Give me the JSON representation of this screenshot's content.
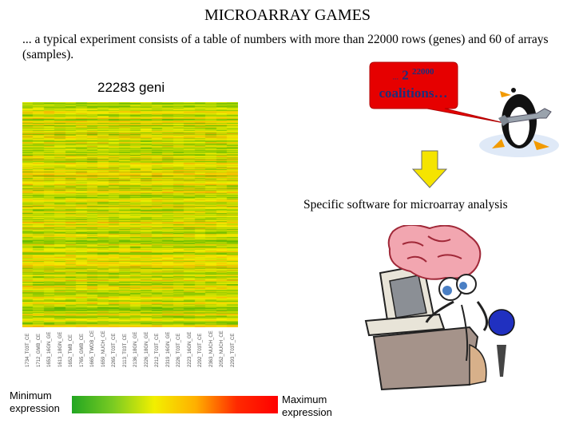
{
  "title": "MICROARRAY GAMES",
  "intro": "... a typical experiment consists of a table of numbers with more than 22000 rows (genes) and 60 of arrays (samples).",
  "heatmap": {
    "label": "22283 geni",
    "sample_labels": [
      "1734_T03T_CE",
      "1712_GMB_CE",
      "1653_16GN_GE",
      "1613_18GN_GE",
      "1652_TMB_CE",
      "1765_GMB_CE",
      "1665_TWDB_CE",
      "1659_NUCH_CE",
      "2265_T03T_CE",
      "2113_T03T_CE",
      "2136_18GN_GE",
      "2226_18GN_GE",
      "2212_T03T_CE",
      "2319_16GN_GE",
      "2226_T03T_CE",
      "2223_16GN_GE",
      "2292_T03T_CE",
      "2363_NUCH_CE",
      "2052_NUCH_CE",
      "2293_T03T_CE"
    ],
    "colors": {
      "low": "#22a622",
      "mid": "#f2ef00",
      "high": "#ff0000"
    }
  },
  "legend": {
    "min_line1": "Minimum",
    "min_line2": "expression",
    "max_line1": "Maximum",
    "max_line2": "expression"
  },
  "bubble": {
    "prefix": "...",
    "base": "2",
    "exponent": "22000",
    "word": "coalitions…",
    "fill": "#e60000",
    "text_color": "#1f2e7a"
  },
  "subtitle": "Specific software for microarray analysis",
  "arrow": {
    "fill": "#f5e400"
  }
}
